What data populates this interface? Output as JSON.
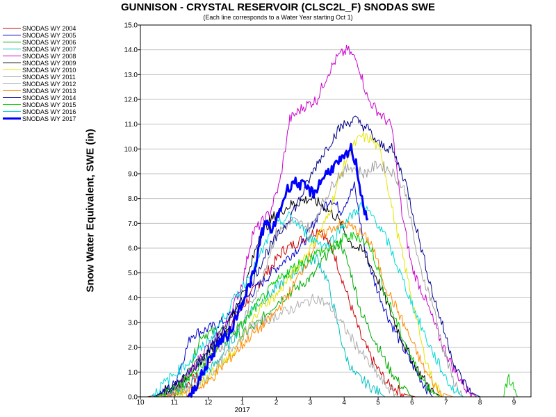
{
  "chart_data": {
    "type": "line",
    "title": "GUNNISON - CRYSTAL RESERVOIR (CLSC2L_F) SNODAS SWE",
    "subtitle": "(Each line corresponds to a Water Year starting Oct 1)",
    "ylabel": "Snow Water Equivalent, SWE (in)",
    "xlabel": "",
    "ylim": [
      0,
      15
    ],
    "y_ticks": [
      "0.0",
      "1.0",
      "2.0",
      "3.0",
      "4.0",
      "5.0",
      "6.0",
      "7.0",
      "8.0",
      "9.0",
      "10.0",
      "11.0",
      "12.0",
      "13.0",
      "14.0",
      "15.0"
    ],
    "x_ticks": [
      "10",
      "11",
      "12",
      "1",
      "2",
      "3",
      "4",
      "5",
      "6",
      "7",
      "8",
      "9"
    ],
    "x_year_label": "2017",
    "x_unit": "months since Oct 1",
    "xlim": [
      0,
      11.5
    ],
    "series": [
      {
        "name": "SNODAS WY 2004",
        "color": "#cc0000",
        "points": [
          [
            0.2,
            0
          ],
          [
            1,
            0.2
          ],
          [
            1.8,
            0.9
          ],
          [
            2.5,
            2.6
          ],
          [
            3,
            3.6
          ],
          [
            3.5,
            4.6
          ],
          [
            4.2,
            5.9
          ],
          [
            4.7,
            6.3
          ],
          [
            5.3,
            6.8
          ],
          [
            5.7,
            5.8
          ],
          [
            6,
            4.5
          ],
          [
            6.5,
            2.4
          ],
          [
            6.9,
            1.3
          ],
          [
            7.3,
            0.5
          ],
          [
            7.8,
            0.1
          ],
          [
            8.1,
            0
          ]
        ]
      },
      {
        "name": "SNODAS WY 2005",
        "color": "#0000cc",
        "points": [
          [
            0.4,
            0
          ],
          [
            1,
            0.5
          ],
          [
            1.5,
            2.5
          ],
          [
            2.1,
            2.8
          ],
          [
            2.5,
            3.1
          ],
          [
            3,
            3.8
          ],
          [
            3.5,
            4.5
          ],
          [
            4,
            5.2
          ],
          [
            4.8,
            6.2
          ],
          [
            5.3,
            7.5
          ],
          [
            5.6,
            8
          ],
          [
            5.9,
            7.5
          ],
          [
            6.3,
            8.5
          ],
          [
            6.6,
            6
          ],
          [
            6.9,
            4.6
          ],
          [
            7.3,
            3.2
          ],
          [
            7.8,
            1.8
          ],
          [
            8.3,
            0.6
          ],
          [
            8.6,
            0
          ]
        ]
      },
      {
        "name": "SNODAS WY 2006",
        "color": "#00aa00",
        "points": [
          [
            0.4,
            0
          ],
          [
            1.2,
            0.2
          ],
          [
            1.8,
            2.5
          ],
          [
            2.4,
            2.7
          ],
          [
            3,
            2.5
          ],
          [
            3.5,
            3
          ],
          [
            4,
            3.8
          ],
          [
            4.6,
            4.4
          ],
          [
            5.1,
            4.9
          ],
          [
            5.5,
            5.8
          ],
          [
            5.9,
            6.2
          ],
          [
            6.2,
            5
          ],
          [
            6.5,
            3.4
          ],
          [
            6.9,
            2.3
          ],
          [
            7.3,
            1.2
          ],
          [
            7.7,
            0.4
          ],
          [
            8,
            0
          ]
        ]
      },
      {
        "name": "SNODAS WY 2007",
        "color": "#00c0c0",
        "points": [
          [
            0.5,
            0
          ],
          [
            1.2,
            0.3
          ],
          [
            1.7,
            0.8
          ],
          [
            2.2,
            1.3
          ],
          [
            2.8,
            2.5
          ],
          [
            3.3,
            3.6
          ],
          [
            3.8,
            4.1
          ],
          [
            4.3,
            4.8
          ],
          [
            4.8,
            5.3
          ],
          [
            5.2,
            5.6
          ],
          [
            5.5,
            4.7
          ],
          [
            5.8,
            3
          ],
          [
            6,
            1.8
          ],
          [
            6.3,
            0.9
          ],
          [
            6.8,
            0.4
          ],
          [
            7.2,
            0
          ]
        ]
      },
      {
        "name": "SNODAS WY 2008",
        "color": "#cc00cc",
        "points": [
          [
            0.6,
            0
          ],
          [
            1.3,
            0.6
          ],
          [
            1.9,
            1.9
          ],
          [
            2.5,
            2.8
          ],
          [
            3,
            4.6
          ],
          [
            3.3,
            6.6
          ],
          [
            3.8,
            7.4
          ],
          [
            4.1,
            8.6
          ],
          [
            4.4,
            11.2
          ],
          [
            4.8,
            11.7
          ],
          [
            5.2,
            12
          ],
          [
            5.5,
            13
          ],
          [
            5.8,
            13.7
          ],
          [
            6.1,
            14
          ],
          [
            6.4,
            13.5
          ],
          [
            6.7,
            12
          ],
          [
            7,
            11.5
          ],
          [
            7.4,
            10.9
          ],
          [
            7.7,
            7.4
          ],
          [
            8,
            5.2
          ],
          [
            8.4,
            3.9
          ],
          [
            8.8,
            2.4
          ],
          [
            9.2,
            1.2
          ],
          [
            9.6,
            0.3
          ],
          [
            9.9,
            0
          ]
        ]
      },
      {
        "name": "SNODAS WY 2009",
        "color": "#000000",
        "points": [
          [
            0.4,
            0
          ],
          [
            1.2,
            0.6
          ],
          [
            1.8,
            1.5
          ],
          [
            2.5,
            2.6
          ],
          [
            3.1,
            4.5
          ],
          [
            3.5,
            6.5
          ],
          [
            4,
            7.4
          ],
          [
            4.5,
            7.8
          ],
          [
            5,
            8
          ],
          [
            5.4,
            7.7
          ],
          [
            5.8,
            7.2
          ],
          [
            6.2,
            6.2
          ],
          [
            6.6,
            5.8
          ],
          [
            7,
            4.7
          ],
          [
            7.4,
            3.3
          ],
          [
            7.8,
            2
          ],
          [
            8.2,
            1
          ],
          [
            8.6,
            0.2
          ],
          [
            8.9,
            0
          ]
        ]
      },
      {
        "name": "SNODAS WY 2010",
        "color": "#e6e600",
        "points": [
          [
            0.5,
            0
          ],
          [
            1.2,
            0.2
          ],
          [
            1.8,
            0.6
          ],
          [
            2.5,
            1.4
          ],
          [
            3.1,
            2.5
          ],
          [
            3.5,
            3.6
          ],
          [
            4,
            4.1
          ],
          [
            4.5,
            5
          ],
          [
            5,
            6
          ],
          [
            5.5,
            7.2
          ],
          [
            5.9,
            9
          ],
          [
            6.2,
            10
          ],
          [
            6.5,
            10.5
          ],
          [
            6.8,
            10.4
          ],
          [
            7.1,
            9.8
          ],
          [
            7.5,
            7
          ],
          [
            7.9,
            4.6
          ],
          [
            8.3,
            2
          ],
          [
            8.6,
            0.7
          ],
          [
            8.9,
            0
          ]
        ]
      },
      {
        "name": "SNODAS WY 2011",
        "color": "#a0a0a0",
        "points": [
          [
            0.3,
            0
          ],
          [
            1,
            0.2
          ],
          [
            1.7,
            1.4
          ],
          [
            2.4,
            2
          ],
          [
            3,
            3
          ],
          [
            3.5,
            4.5
          ],
          [
            4,
            6.6
          ],
          [
            4.5,
            7.1
          ],
          [
            5,
            6.8
          ],
          [
            5.4,
            7.9
          ],
          [
            5.8,
            8.9
          ],
          [
            6.2,
            9.3
          ],
          [
            6.6,
            9
          ],
          [
            7,
            9.4
          ],
          [
            7.4,
            9.1
          ],
          [
            7.8,
            8.3
          ],
          [
            8.2,
            5.3
          ],
          [
            8.6,
            3.8
          ],
          [
            8.9,
            2
          ],
          [
            9.2,
            0.7
          ],
          [
            9.5,
            0
          ]
        ]
      },
      {
        "name": "SNODAS WY 2012",
        "color": "#b0b0b0",
        "points": [
          [
            0.6,
            0
          ],
          [
            1.4,
            0.3
          ],
          [
            2,
            0.8
          ],
          [
            2.6,
            1.8
          ],
          [
            3.2,
            2.8
          ],
          [
            3.7,
            3.1
          ],
          [
            4.2,
            3.4
          ],
          [
            4.7,
            3.7
          ],
          [
            5.2,
            4
          ],
          [
            5.6,
            3.6
          ],
          [
            6,
            2.8
          ],
          [
            6.4,
            2
          ],
          [
            6.8,
            1.2
          ],
          [
            7.2,
            0.5
          ],
          [
            7.6,
            0
          ]
        ]
      },
      {
        "name": "SNODAS WY 2013",
        "color": "#ff8800",
        "points": [
          [
            0.7,
            0
          ],
          [
            1.4,
            0.2
          ],
          [
            2,
            0.6
          ],
          [
            2.6,
            1.5
          ],
          [
            3.2,
            2.4
          ],
          [
            3.8,
            3.1
          ],
          [
            4.3,
            4
          ],
          [
            4.8,
            5.2
          ],
          [
            5.2,
            6.3
          ],
          [
            5.6,
            6.8
          ],
          [
            6,
            7
          ],
          [
            6.4,
            6.7
          ],
          [
            6.8,
            6.2
          ],
          [
            7.2,
            4.5
          ],
          [
            7.6,
            3.4
          ],
          [
            8,
            2.2
          ],
          [
            8.4,
            1
          ],
          [
            8.8,
            0.2
          ],
          [
            9.2,
            0
          ]
        ]
      },
      {
        "name": "SNODAS WY 2014",
        "color": "#000088",
        "points": [
          [
            0.4,
            0
          ],
          [
            1.1,
            0.5
          ],
          [
            1.8,
            1.5
          ],
          [
            2.5,
            2.8
          ],
          [
            3.2,
            4.4
          ],
          [
            3.7,
            5.8
          ],
          [
            4.2,
            6.8
          ],
          [
            4.7,
            8
          ],
          [
            5.2,
            9.4
          ],
          [
            5.6,
            10.3
          ],
          [
            5.9,
            10.9
          ],
          [
            6.3,
            11.2
          ],
          [
            6.7,
            10.8
          ],
          [
            7,
            10.2
          ],
          [
            7.4,
            10
          ],
          [
            7.8,
            8.7
          ],
          [
            8.2,
            6.4
          ],
          [
            8.6,
            4.2
          ],
          [
            9,
            2.4
          ],
          [
            9.3,
            1.1
          ],
          [
            9.7,
            0.2
          ],
          [
            10,
            0
          ]
        ]
      },
      {
        "name": "SNODAS WY 2015",
        "color": "#00cc00",
        "points": [
          [
            0.5,
            0
          ],
          [
            1.2,
            0.5
          ],
          [
            1.8,
            1.2
          ],
          [
            2.4,
            2.2
          ],
          [
            3,
            2.9
          ],
          [
            3.6,
            4
          ],
          [
            4.2,
            4.9
          ],
          [
            4.7,
            5.4
          ],
          [
            5.2,
            5.8
          ],
          [
            5.6,
            6
          ],
          [
            6,
            6.4
          ],
          [
            6.4,
            6.5
          ],
          [
            6.8,
            6
          ],
          [
            7.2,
            4.2
          ],
          [
            7.6,
            2.8
          ],
          [
            8,
            1.5
          ],
          [
            8.4,
            0.5
          ],
          [
            8.8,
            0
          ]
        ]
      },
      {
        "name": "SNODAS WY 2016",
        "color": "#00d8d8",
        "points": [
          [
            0.3,
            0
          ],
          [
            0.9,
            0.8
          ],
          [
            1.5,
            1.5
          ],
          [
            2.1,
            2.4
          ],
          [
            2.8,
            4
          ],
          [
            3.4,
            5.3
          ],
          [
            3.9,
            6.8
          ],
          [
            4.4,
            7.3
          ],
          [
            5,
            6.4
          ],
          [
            5.5,
            6.1
          ],
          [
            6,
            7
          ],
          [
            6.5,
            7.7
          ],
          [
            6.9,
            7.2
          ],
          [
            7.3,
            6.2
          ],
          [
            7.7,
            4.8
          ],
          [
            8.1,
            3.4
          ],
          [
            8.5,
            2.1
          ],
          [
            8.9,
            1
          ],
          [
            9.2,
            0.3
          ],
          [
            9.5,
            0
          ]
        ]
      },
      {
        "name": "SNODAS WY 2017",
        "color": "#0000ff",
        "bold": true,
        "points": [
          [
            1.4,
            0
          ],
          [
            1.7,
            0.6
          ],
          [
            2,
            1.4
          ],
          [
            2.3,
            2.2
          ],
          [
            2.6,
            2.5
          ],
          [
            2.9,
            3.5
          ],
          [
            3.2,
            4.5
          ],
          [
            3.4,
            5.2
          ],
          [
            3.55,
            6.6
          ],
          [
            3.7,
            7
          ],
          [
            3.9,
            6.7
          ],
          [
            4.1,
            7.5
          ],
          [
            4.3,
            8.3
          ],
          [
            4.5,
            8.7
          ],
          [
            4.8,
            8.5
          ],
          [
            5.1,
            8.2
          ],
          [
            5.4,
            8.9
          ],
          [
            5.7,
            9.3
          ],
          [
            6,
            9.6
          ],
          [
            6.2,
            10
          ],
          [
            6.35,
            9.4
          ],
          [
            6.45,
            8.6
          ],
          [
            6.6,
            7.5
          ],
          [
            6.7,
            7.2
          ]
        ]
      },
      {
        "name": "",
        "color": "#00cc00",
        "points": [
          [
            10.7,
            0
          ],
          [
            10.85,
            0.8
          ],
          [
            11,
            0.3
          ],
          [
            11.1,
            0
          ]
        ]
      }
    ]
  }
}
